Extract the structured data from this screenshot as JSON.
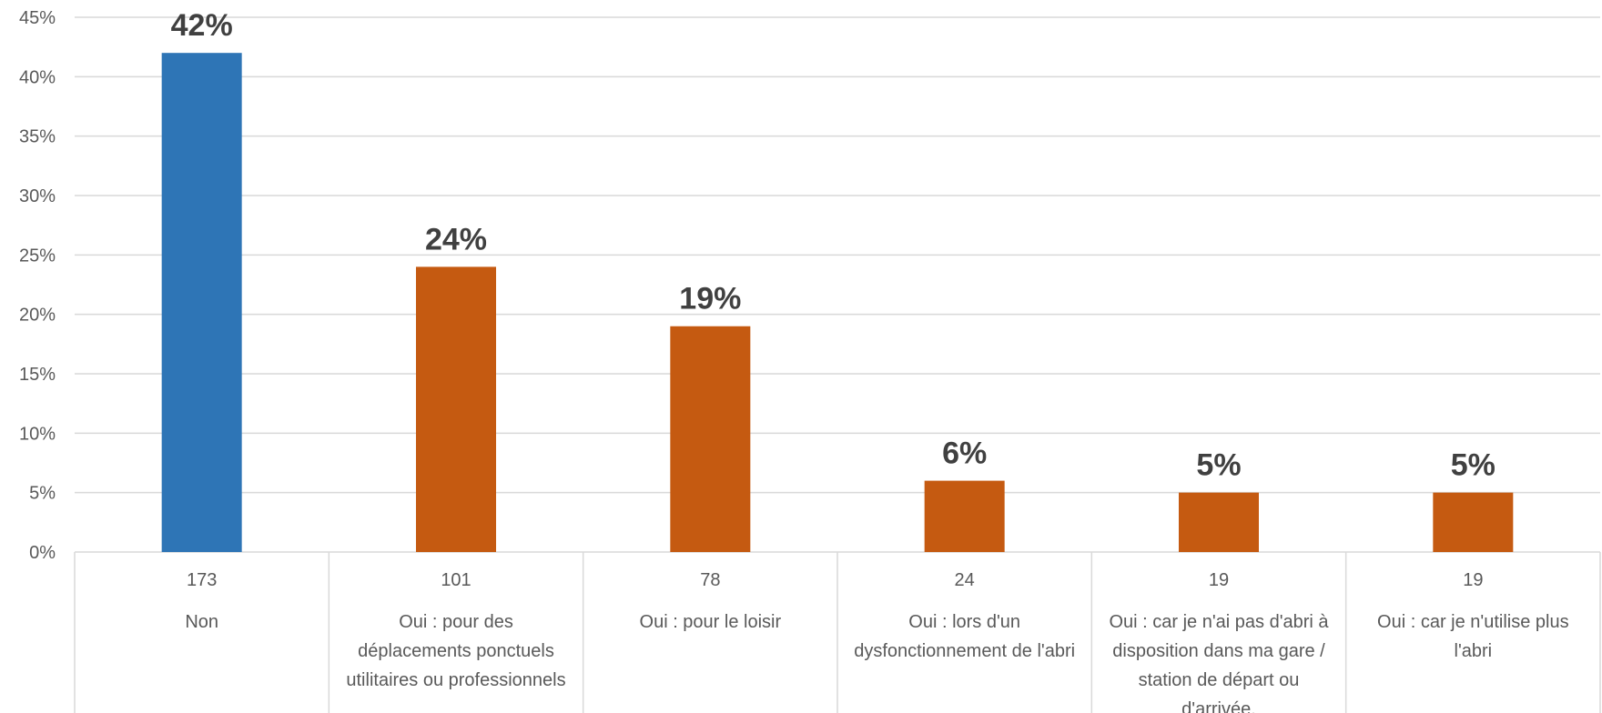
{
  "chart_data": {
    "type": "bar",
    "categories": [
      {
        "count": "173",
        "lines": [
          "Non"
        ]
      },
      {
        "count": "101",
        "lines": [
          "Oui : pour des",
          "déplacements ponctuels",
          "utilitaires ou professionnels"
        ]
      },
      {
        "count": "78",
        "lines": [
          "Oui : pour le loisir"
        ]
      },
      {
        "count": "24",
        "lines": [
          "Oui : lors d'un",
          "dysfonctionnement de l'abri"
        ]
      },
      {
        "count": "19",
        "lines": [
          "Oui : car je n'ai pas d'abri à",
          "disposition dans ma gare /",
          "station de départ ou",
          "d'arrivée."
        ]
      },
      {
        "count": "19",
        "lines": [
          "Oui : car je n'utilise plus",
          "l'abri"
        ]
      }
    ],
    "values": [
      42,
      24,
      19,
      6,
      5,
      5
    ],
    "data_labels": [
      "42%",
      "24%",
      "19%",
      "6%",
      "5%",
      "5%"
    ],
    "colors": [
      "#2e75b6",
      "#c55a11",
      "#c55a11",
      "#c55a11",
      "#c55a11",
      "#c55a11"
    ],
    "y_ticks": [
      "0%",
      "5%",
      "10%",
      "15%",
      "20%",
      "25%",
      "30%",
      "35%",
      "40%",
      "45%"
    ],
    "ylim": [
      0,
      45
    ],
    "grid": true,
    "title": "",
    "xlabel": "",
    "ylabel": ""
  }
}
